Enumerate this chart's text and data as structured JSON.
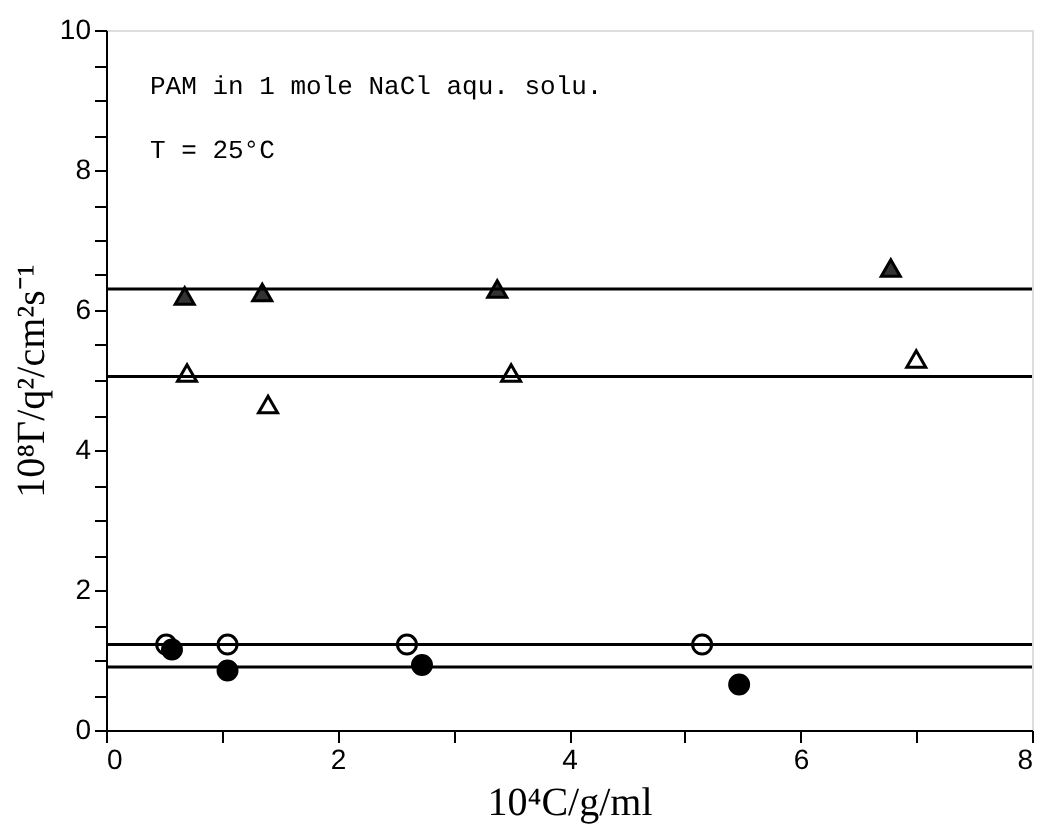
{
  "chart_data": {
    "type": "scatter",
    "xlabel": "10⁴C/g/ml",
    "ylabel": "10⁸Γ/q²/cm²s⁻¹",
    "annotations": [
      "PAM in 1 mole NaCl aqu. solu.",
      "T = 25°C"
    ],
    "xlim": [
      0,
      8
    ],
    "ylim": [
      0,
      10
    ],
    "xticks": [
      0,
      {
        "value": 1,
        "label": null
      },
      2,
      {
        "value": 3,
        "label": null
      },
      4,
      {
        "value": 5,
        "label": null
      },
      6,
      {
        "value": 7,
        "label": null
      },
      8
    ],
    "yticks": [
      0,
      {
        "value": 0.5,
        "label": null
      },
      {
        "value": 1,
        "label": null
      },
      {
        "value": 1.5,
        "label": null
      },
      2,
      {
        "value": 2.5,
        "label": null
      },
      {
        "value": 3,
        "label": null
      },
      {
        "value": 3.5,
        "label": null
      },
      4,
      {
        "value": 4.5,
        "label": null
      },
      {
        "value": 5,
        "label": null
      },
      {
        "value": 5.5,
        "label": null
      },
      6,
      {
        "value": 6.5,
        "label": null
      },
      {
        "value": 7,
        "label": null
      },
      {
        "value": 7.5,
        "label": null
      },
      8,
      {
        "value": 8.5,
        "label": null
      },
      {
        "value": 9,
        "label": null
      },
      {
        "value": 9.5,
        "label": null
      },
      10
    ],
    "grid": false,
    "series": [
      {
        "marker": "triangle",
        "color": "#333333",
        "x": [
          0.68,
          1.35,
          3.38,
          6.78
        ],
        "values": [
          6.2,
          6.25,
          6.3,
          6.6
        ]
      },
      {
        "marker": "triangle",
        "color": "#ffffff",
        "x": [
          0.7,
          1.4,
          3.5,
          7.0
        ],
        "values": [
          5.1,
          4.65,
          5.1,
          5.3
        ]
      },
      {
        "marker": "circle",
        "color": "#ffffff",
        "x": [
          0.52,
          1.05,
          2.6,
          5.15
        ],
        "values": [
          1.22,
          1.22,
          1.22,
          1.22
        ]
      },
      {
        "marker": "circle",
        "color": "#000000",
        "x": [
          0.57,
          1.05,
          2.73,
          5.47
        ],
        "values": [
          1.15,
          0.85,
          0.93,
          0.65
        ]
      },
      {
        "type": "line",
        "marker": "none",
        "color": "#000000",
        "x": [
          0,
          8
        ],
        "values": [
          6.3,
          6.3
        ]
      },
      {
        "type": "line",
        "marker": "none",
        "color": "#000000",
        "x": [
          0,
          8
        ],
        "values": [
          5.05,
          5.05
        ]
      },
      {
        "type": "line",
        "marker": "none",
        "color": "#000000",
        "x": [
          0,
          8
        ],
        "values": [
          1.22,
          1.22
        ]
      },
      {
        "type": "line",
        "marker": "none",
        "color": "#000000",
        "x": [
          0,
          8
        ],
        "values": [
          0.9,
          0.9
        ]
      }
    ]
  }
}
